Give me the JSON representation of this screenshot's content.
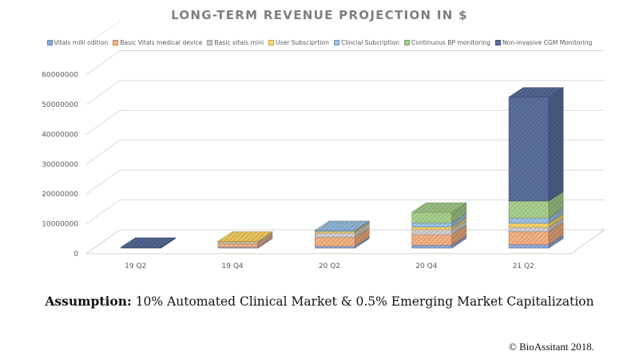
{
  "chart_data": {
    "type": "bar",
    "subtype": "3d-stacked",
    "title": "LONG-TERM REVENUE PROJECTION IN $",
    "xlabel": "",
    "ylabel": "",
    "ylim": [
      0,
      60000000
    ],
    "yticks": [
      "0",
      "10000000",
      "20000000",
      "30000000",
      "40000000",
      "50000000",
      "60000000"
    ],
    "grid": true,
    "legend_position": "top",
    "categories": [
      "19  Q2",
      "19 Q4",
      "20 Q2",
      "20 Q4",
      "21 Q2"
    ],
    "series": [
      {
        "name": "Vitals milli edition",
        "color": "#8faadc",
        "values": [
          0,
          300000,
          600000,
          1000000,
          1200000
        ]
      },
      {
        "name": "Basic Vitals medical device",
        "color": "#f4b183",
        "values": [
          0,
          1200000,
          3000000,
          3500000,
          4300000
        ]
      },
      {
        "name": "Basic vitals mini",
        "color": "#d0cece",
        "values": [
          0,
          500000,
          1500000,
          1700000,
          1500000
        ]
      },
      {
        "name": "User Subsciprtion",
        "color": "#ffd966",
        "values": [
          0,
          200000,
          500000,
          800000,
          1300000
        ]
      },
      {
        "name": "Clincial Subcription",
        "color": "#9dc3e6",
        "values": [
          0,
          0,
          100000,
          1500000,
          1800000
        ]
      },
      {
        "name": "Continuous BP monitoring",
        "color": "#a9d18e",
        "values": [
          0,
          0,
          0,
          3500000,
          5700000
        ]
      },
      {
        "name": "Non-invasive CGM Monitoring",
        "color": "#5a6f9e",
        "values": [
          50000,
          0,
          0,
          0,
          34800000
        ]
      }
    ]
  },
  "footer": {
    "assumption_label": "Assumption:",
    "assumption_text": " 10% Automated Clinical Market & 0.5% Emerging Market Capitalization",
    "copyright": "© BioAssitant 2018."
  }
}
